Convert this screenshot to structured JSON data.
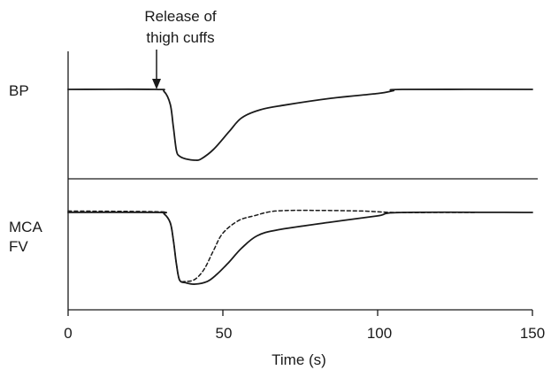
{
  "chart_data": {
    "type": "line",
    "xlabel": "Time (s)",
    "xlim": [
      0,
      150
    ],
    "x_ticks": [
      0,
      50,
      100,
      150
    ],
    "x_tick_labels": [
      "0",
      "50",
      "100",
      "150"
    ],
    "annotation": {
      "line1": "Release of",
      "line2": "thigh cuffs",
      "x": 29
    },
    "panels": [
      {
        "label": "BP",
        "label_lines": [
          "BP"
        ],
        "series": [
          {
            "style": "solid",
            "points": [
              [
                0,
                0
              ],
              [
                28,
                0
              ],
              [
                31,
                -0.03
              ],
              [
                33,
                -0.22
              ],
              [
                34,
                -0.55
              ],
              [
                35,
                -0.9
              ],
              [
                36,
                -0.98
              ],
              [
                38,
                -1.02
              ],
              [
                41,
                -1.04
              ],
              [
                43,
                -1.02
              ],
              [
                47,
                -0.88
              ],
              [
                52,
                -0.62
              ],
              [
                56,
                -0.42
              ],
              [
                62,
                -0.3
              ],
              [
                70,
                -0.23
              ],
              [
                85,
                -0.13
              ],
              [
                100,
                -0.06
              ],
              [
                105,
                -0.02
              ],
              [
                108,
                0
              ],
              [
                150,
                0
              ]
            ]
          }
        ]
      },
      {
        "label": "MCA FV",
        "label_lines": [
          "MCA",
          "FV"
        ],
        "series": [
          {
            "style": "solid",
            "points": [
              [
                0,
                0
              ],
              [
                29,
                0
              ],
              [
                31,
                -0.02
              ],
              [
                33,
                -0.15
              ],
              [
                34,
                -0.4
              ],
              [
                35,
                -0.75
              ],
              [
                36,
                -0.98
              ],
              [
                38,
                -1.02
              ],
              [
                41,
                -1.04
              ],
              [
                45,
                -1.0
              ],
              [
                48,
                -0.9
              ],
              [
                52,
                -0.72
              ],
              [
                56,
                -0.52
              ],
              [
                61,
                -0.34
              ],
              [
                68,
                -0.25
              ],
              [
                85,
                -0.14
              ],
              [
                100,
                -0.05
              ],
              [
                108,
                0
              ],
              [
                150,
                0
              ]
            ]
          },
          {
            "style": "dashed",
            "points": [
              [
                0,
                0.02
              ],
              [
                29,
                0.01
              ],
              [
                31,
                -0.02
              ],
              [
                33,
                -0.15
              ],
              [
                34,
                -0.4
              ],
              [
                35,
                -0.75
              ],
              [
                36,
                -0.98
              ],
              [
                38,
                -1.0
              ],
              [
                41,
                -0.97
              ],
              [
                44,
                -0.82
              ],
              [
                47,
                -0.55
              ],
              [
                50,
                -0.3
              ],
              [
                55,
                -0.12
              ],
              [
                60,
                -0.05
              ],
              [
                67,
                0.02
              ],
              [
                80,
                0.03
              ],
              [
                95,
                0.02
              ],
              [
                105,
                0.0
              ],
              [
                120,
                0.0
              ],
              [
                132,
                0.0
              ]
            ]
          }
        ]
      }
    ]
  }
}
